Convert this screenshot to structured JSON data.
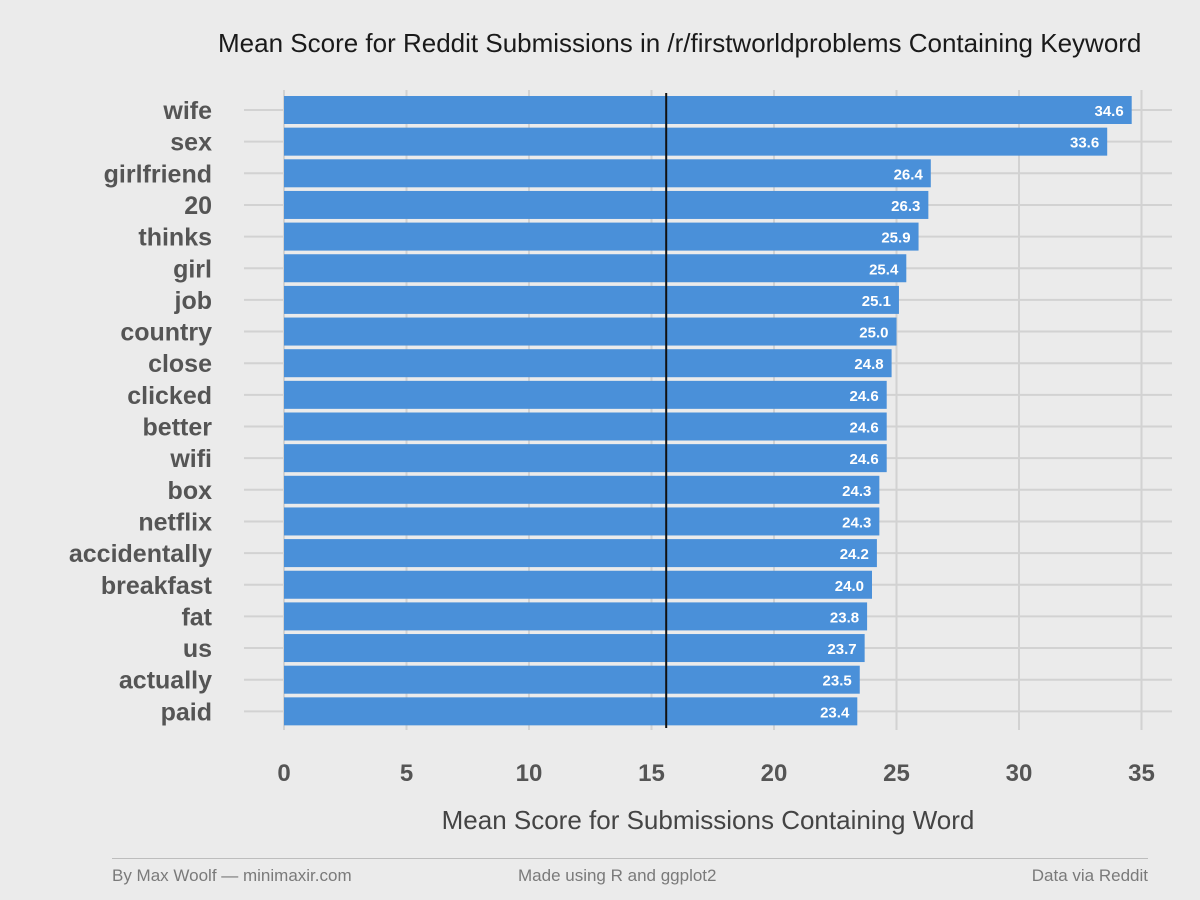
{
  "chart_data": {
    "type": "bar",
    "orientation": "horizontal",
    "title": "Mean Score for Reddit Submissions in /r/firstworldproblems Containing Keyword",
    "xlabel": "Mean Score for Submissions Containing Word",
    "ylabel": "",
    "xlim": [
      0,
      35
    ],
    "xticks": [
      0,
      5,
      10,
      15,
      20,
      25,
      30,
      35
    ],
    "reference_line": 15.6,
    "categories": [
      "wife",
      "sex",
      "girlfriend",
      "20",
      "thinks",
      "girl",
      "job",
      "country",
      "close",
      "clicked",
      "better",
      "wifi",
      "box",
      "netflix",
      "accidentally",
      "breakfast",
      "fat",
      "us",
      "actually",
      "paid"
    ],
    "values": [
      34.6,
      33.6,
      26.4,
      26.3,
      25.9,
      25.4,
      25.1,
      25.0,
      24.8,
      24.6,
      24.6,
      24.6,
      24.3,
      24.3,
      24.2,
      24.0,
      23.8,
      23.7,
      23.5,
      23.4
    ],
    "value_labels": [
      "34.6",
      "33.6",
      "26.4",
      "26.3",
      "25.9",
      "25.4",
      "25.1",
      "25.0",
      "24.8",
      "24.6",
      "24.6",
      "24.6",
      "24.3",
      "24.3",
      "24.2",
      "24.0",
      "23.8",
      "23.7",
      "23.5",
      "23.4"
    ],
    "bar_color": "#4a90d9",
    "grid": true,
    "legend": "none"
  },
  "footer": {
    "left": "By Max Woolf — minimaxir.com",
    "center": "Made using R and ggplot2",
    "right": "Data via Reddit"
  }
}
